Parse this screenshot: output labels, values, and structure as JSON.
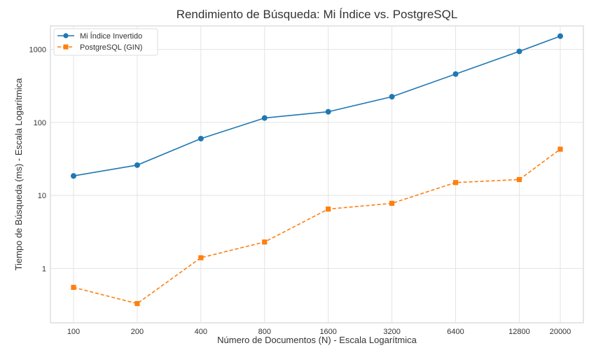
{
  "chart_data": {
    "type": "line",
    "title": "Rendimiento de Búsqueda: Mi Índice vs. PostgreSQL",
    "xlabel": "Número de Documentos (N) - Escala Logarítmica",
    "ylabel": "Tiempo de Búsqueda (ms) - Escala Logarítmica",
    "x_scale": "log",
    "y_scale": "log",
    "x": [
      100,
      200,
      400,
      800,
      1600,
      3200,
      6400,
      12800,
      20000
    ],
    "x_tick_labels": [
      "100",
      "200",
      "400",
      "800",
      "1600",
      "3200",
      "6400",
      "12800",
      "20000"
    ],
    "ylim": [
      0.18,
      2100
    ],
    "y_ticks": [
      1,
      10,
      100,
      1000
    ],
    "y_tick_labels": [
      "1",
      "10",
      "100",
      "1000"
    ],
    "grid": true,
    "legend_position": "top-left",
    "series": [
      {
        "name": "Mi Índice Invertido",
        "values": [
          18.5,
          26,
          60,
          115,
          140,
          225,
          460,
          940,
          1520
        ],
        "color": "#1f77b4",
        "marker": "circle",
        "line_style": "solid"
      },
      {
        "name": "PostgreSQL (GIN)",
        "values": [
          0.55,
          0.33,
          1.4,
          2.3,
          6.5,
          7.8,
          15,
          16.5,
          43
        ],
        "color": "#ff7f0e",
        "marker": "square",
        "line_style": "dashed"
      }
    ]
  }
}
